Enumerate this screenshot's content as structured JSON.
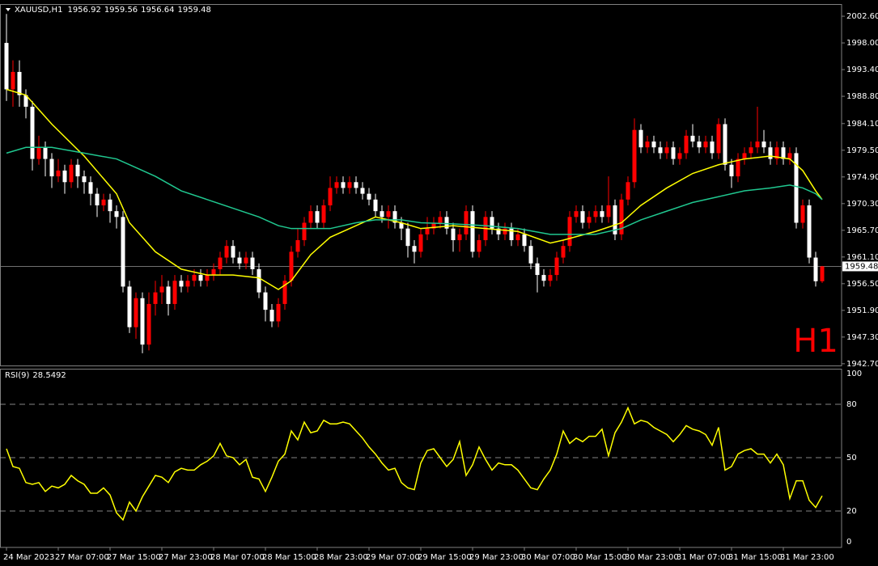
{
  "chart_data": [
    {
      "type": "candlestick",
      "title": "XAUUSD,H1",
      "categories": [
        "24 Mar 2023",
        null,
        null,
        null,
        null,
        null,
        null,
        null,
        "27 Mar 07:00",
        null,
        null,
        null,
        null,
        null,
        null,
        null,
        "27 Mar 15:00",
        null,
        null,
        null,
        null,
        null,
        null,
        null,
        "27 Mar 23:00",
        null,
        null,
        null,
        null,
        null,
        null,
        null,
        "28 Mar 07:00",
        null,
        null,
        null,
        null,
        null,
        null,
        null,
        "28 Mar 15:00",
        null,
        null,
        null,
        null,
        null,
        null,
        null,
        "28 Mar 23:00",
        null,
        null,
        null,
        null,
        null,
        null,
        null,
        "29 Mar 07:00",
        null,
        null,
        null,
        null,
        null,
        null,
        null,
        "29 Mar 15:00",
        null,
        null,
        null,
        null,
        null,
        null,
        null,
        "29 Mar 23:00",
        null,
        null,
        null,
        null,
        null,
        null,
        null,
        "30 Mar 07:00",
        null,
        null,
        null,
        null,
        null,
        null,
        null,
        "30 Mar 15:00",
        null,
        null,
        null,
        null,
        null,
        null,
        null,
        "30 Mar 23:00",
        null,
        null,
        null,
        null,
        null,
        null,
        null,
        "31 Mar 07:00",
        null,
        null,
        null,
        null,
        null,
        null,
        null,
        "31 Mar 15:00",
        null,
        null,
        null,
        null,
        null,
        null,
        null,
        "31 Mar 23:00",
        null,
        null,
        null,
        null,
        null,
        null
      ],
      "open": [
        1998,
        1990,
        1993,
        1989,
        1987,
        1978,
        1980,
        1978,
        1975,
        1976,
        1974,
        1977,
        1975,
        1974,
        1972,
        1970,
        1971,
        1969,
        1968,
        1956,
        1949,
        1954,
        1946,
        1953,
        1955,
        1956,
        1953,
        1957,
        1956,
        1957,
        1958,
        1957,
        1958,
        1959,
        1961,
        1963,
        1961,
        1960,
        1961,
        1959,
        1955,
        1952,
        1950,
        1953,
        1957,
        1962,
        1964,
        1967,
        1969,
        1967,
        1970,
        1973,
        1974,
        1973,
        1974,
        1973,
        1972,
        1971,
        1969,
        1968,
        1969,
        1967,
        1966,
        1963,
        1962,
        1965,
        1966,
        1967,
        1968,
        1966,
        1964,
        1965,
        1969,
        1962,
        1964,
        1968,
        1966,
        1965,
        1966,
        1964,
        1965,
        1963,
        1960,
        1958,
        1957,
        1958,
        1961,
        1963,
        1968,
        1969,
        1967,
        1968,
        1969,
        1968,
        1970,
        1965,
        1971,
        1974,
        1983,
        1980,
        1981,
        1980,
        1979,
        1980,
        1978,
        1979,
        1982,
        1981,
        1980,
        1981,
        1979,
        1984,
        1977,
        1975,
        1978,
        1979,
        1980,
        1981,
        1980,
        1978,
        1980,
        1978,
        1979,
        1967,
        1970,
        1961,
        1956.92
      ],
      "high": [
        2003,
        1995,
        1995,
        1990,
        1988,
        1982,
        1981,
        1979,
        1978,
        1977,
        1978,
        1978,
        1976,
        1975,
        1973,
        1972,
        1972,
        1970,
        1969,
        1957,
        1955,
        1955,
        1955,
        1957,
        1958,
        1957,
        1958,
        1958,
        1958,
        1959,
        1959,
        1959,
        1960,
        1962,
        1964,
        1964,
        1962,
        1962,
        1962,
        1960,
        1956,
        1953,
        1954,
        1958,
        1963,
        1966,
        1968,
        1970,
        1970,
        1971,
        1975,
        1975,
        1975,
        1975,
        1975,
        1974,
        1973,
        1972,
        1970,
        1970,
        1970,
        1968,
        1967,
        1964,
        1966,
        1968,
        1968,
        1969,
        1969,
        1967,
        1966,
        1970,
        1970,
        1965,
        1969,
        1969,
        1967,
        1967,
        1967,
        1966,
        1966,
        1964,
        1961,
        1959,
        1959,
        1962,
        1964,
        1969,
        1970,
        1970,
        1969,
        1970,
        1970,
        1975,
        1971,
        1972,
        1975,
        1985,
        1984,
        1982,
        1982,
        1981,
        1981,
        1981,
        1980,
        1983,
        1984,
        1982,
        1982,
        1982,
        1985,
        1985,
        1978,
        1979,
        1980,
        1981,
        1987,
        1983,
        1981,
        1981,
        1981,
        1980,
        1980,
        1971,
        1971,
        1962,
        1959.56
      ],
      "low": [
        1988,
        1987,
        1987,
        1985,
        1976,
        1977,
        1975,
        1973,
        1974,
        1972,
        1973,
        1973,
        1972,
        1970,
        1968,
        1969,
        1967,
        1966,
        1955,
        1948,
        1947,
        1944.5,
        1945,
        1951,
        1953,
        1951,
        1952,
        1955,
        1955,
        1956,
        1956,
        1956,
        1957,
        1958,
        1960,
        1960,
        1959,
        1959,
        1958,
        1954,
        1950,
        1949,
        1949,
        1952,
        1956,
        1961,
        1963,
        1966,
        1966,
        1966,
        1969,
        1972,
        1972,
        1972,
        1972,
        1971,
        1970,
        1968,
        1967,
        1966,
        1966,
        1964,
        1961,
        1960,
        1961,
        1964,
        1965,
        1966,
        1965,
        1962,
        1962,
        1964,
        1961,
        1961,
        1963,
        1965,
        1964,
        1964,
        1963,
        1963,
        1962,
        1959,
        1955,
        1956,
        1956,
        1957,
        1960,
        1962,
        1967,
        1966,
        1966,
        1967,
        1967,
        1967,
        1964,
        1964,
        1970,
        1973,
        1979,
        1979,
        1979,
        1978,
        1978,
        1977,
        1977,
        1978,
        1980,
        1979,
        1979,
        1978,
        1978,
        1976,
        1973,
        1974,
        1977,
        1978,
        1979,
        1979,
        1977,
        1977,
        1977,
        1977,
        1966,
        1966,
        1960,
        1956,
        1956.64
      ],
      "close": [
        1990,
        1993,
        1989,
        1987,
        1978,
        1980,
        1978,
        1975,
        1976,
        1974,
        1977,
        1975,
        1974,
        1972,
        1970,
        1971,
        1969,
        1968,
        1956,
        1949,
        1954,
        1946,
        1953,
        1955,
        1956,
        1953,
        1957,
        1956,
        1957,
        1958,
        1957,
        1958,
        1959,
        1961,
        1963,
        1961,
        1960,
        1961,
        1959,
        1955,
        1952,
        1950,
        1953,
        1957,
        1962,
        1964,
        1967,
        1969,
        1967,
        1970,
        1973,
        1974,
        1973,
        1974,
        1973,
        1972,
        1971,
        1969,
        1968,
        1969,
        1967,
        1966,
        1963,
        1962,
        1965,
        1966,
        1967,
        1968,
        1966,
        1964,
        1965,
        1969,
        1962,
        1964,
        1968,
        1966,
        1965,
        1966,
        1964,
        1965,
        1963,
        1960,
        1958,
        1957,
        1958,
        1961,
        1963,
        1968,
        1969,
        1967,
        1968,
        1969,
        1968,
        1970,
        1965,
        1971,
        1974,
        1983,
        1980,
        1981,
        1980,
        1979,
        1980,
        1978,
        1979,
        1982,
        1981,
        1980,
        1981,
        1979,
        1984,
        1977,
        1975,
        1978,
        1979,
        1980,
        1981,
        1980,
        1978,
        1980,
        1978,
        1979,
        1967,
        1970,
        1961,
        1956.92,
        1959.48
      ],
      "up_color": "#ff0000",
      "down_color": "#ffffff",
      "moving_averages": [
        {
          "color": "#ffff00",
          "x": [
            0,
            3,
            7,
            12,
            17,
            19,
            23,
            27,
            31,
            35,
            39,
            42,
            44,
            47,
            50,
            54,
            57,
            61,
            64,
            69,
            74,
            79,
            84,
            86,
            91,
            95,
            98,
            102,
            106,
            110,
            114,
            118,
            121,
            123,
            125,
            126
          ],
          "values": [
            1990,
            1989,
            1984,
            1978.5,
            1972,
            1967,
            1962,
            1959,
            1958,
            1958,
            1957.5,
            1955.5,
            1957,
            1961.5,
            1964.5,
            1966.5,
            1968,
            1967,
            1966,
            1966.5,
            1966,
            1965.5,
            1963.5,
            1964,
            1965.5,
            1967,
            1970,
            1973,
            1975.5,
            1977,
            1978,
            1978.5,
            1978,
            1976,
            1972.5,
            1971
          ]
        },
        {
          "color": "#20c890",
          "x": [
            0,
            3,
            7,
            12,
            17,
            19,
            23,
            27,
            31,
            35,
            39,
            42,
            44,
            47,
            50,
            54,
            57,
            61,
            64,
            69,
            74,
            79,
            84,
            86,
            91,
            95,
            98,
            102,
            106,
            110,
            114,
            118,
            121,
            123,
            125,
            126
          ],
          "values": [
            1979,
            1980,
            1980,
            1979,
            1978,
            1977,
            1975,
            1972.5,
            1971,
            1969.5,
            1968,
            1966.5,
            1966,
            1966,
            1966,
            1967,
            1967.5,
            1967.5,
            1967,
            1966.8,
            1966.5,
            1966,
            1965,
            1965,
            1965,
            1966,
            1967.5,
            1969,
            1970.5,
            1971.5,
            1972.5,
            1973,
            1973.5,
            1973,
            1972,
            1971
          ]
        }
      ],
      "ylim": [
        1942.4,
        2004.7
      ],
      "yticks": [
        {
          "value": 2002.6,
          "label": "2002.60"
        },
        {
          "value": 1998.0,
          "label": "1998.00"
        },
        {
          "value": 1993.4,
          "label": "1993.40"
        },
        {
          "value": 1988.8,
          "label": "1988.80"
        },
        {
          "value": 1984.1,
          "label": "1984.10"
        },
        {
          "value": 1979.5,
          "label": "1979.50"
        },
        {
          "value": 1974.9,
          "label": "1974.90"
        },
        {
          "value": 1970.3,
          "label": "1970.30"
        },
        {
          "value": 1965.7,
          "label": "1965.70"
        },
        {
          "value": 1961.1,
          "label": "1961.10"
        },
        {
          "value": 1956.5,
          "label": "1956.50"
        },
        {
          "value": 1951.9,
          "label": "1951.90"
        },
        {
          "value": 1947.3,
          "label": "1947.30"
        },
        {
          "value": 1942.7,
          "label": "1942.70"
        }
      ],
      "current_price": 1959.48,
      "watermark": "H1",
      "watermark_color": "#ff0000"
    },
    {
      "type": "line",
      "title": "RSI(9)",
      "color": "#ffff00",
      "values": [
        55,
        45,
        44,
        36,
        35,
        36,
        31,
        34,
        33,
        35,
        40,
        37,
        35,
        30,
        30,
        33,
        29,
        19,
        15,
        25,
        20,
        28,
        34,
        40,
        39,
        36,
        42,
        44,
        43,
        43,
        46,
        48,
        51,
        58,
        51,
        50,
        46,
        49,
        39,
        38,
        31,
        39,
        48,
        52,
        65,
        60,
        70,
        64,
        65,
        71,
        69,
        69,
        70,
        69,
        65,
        61,
        56,
        52,
        47,
        43,
        44,
        36,
        33,
        32,
        47,
        54,
        55,
        50,
        45,
        49,
        59,
        40,
        46,
        56,
        49,
        43,
        47,
        46,
        46,
        43,
        38,
        33,
        32,
        38,
        43,
        52,
        65,
        58,
        61,
        59,
        62,
        62,
        66,
        51,
        64,
        70,
        78,
        69,
        71,
        70,
        67,
        65,
        63,
        59,
        63,
        68,
        66,
        65,
        63,
        57,
        67,
        43,
        45,
        52,
        54,
        55,
        52,
        52,
        47,
        52,
        46,
        27,
        37,
        37,
        26,
        22,
        28.5492
      ],
      "ylim": [
        0,
        100
      ],
      "yticks": [
        0,
        20,
        50,
        80,
        100
      ]
    }
  ]
}
